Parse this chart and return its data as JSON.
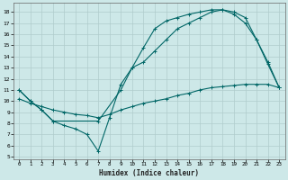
{
  "xlabel": "Humidex (Indice chaleur)",
  "bg_color": "#cde8e8",
  "grid_color": "#b0cccc",
  "line_color": "#006666",
  "xlim": [
    -0.5,
    23.5
  ],
  "ylim": [
    4.8,
    18.8
  ],
  "xticks": [
    0,
    1,
    2,
    3,
    4,
    5,
    6,
    7,
    8,
    9,
    10,
    11,
    12,
    13,
    14,
    15,
    16,
    17,
    18,
    19,
    20,
    21,
    22,
    23
  ],
  "yticks": [
    5,
    6,
    7,
    8,
    9,
    10,
    11,
    12,
    13,
    14,
    15,
    16,
    17,
    18
  ],
  "line1_x": [
    0,
    1,
    2,
    3,
    7,
    9,
    10,
    11,
    12,
    13,
    14,
    15,
    16,
    17,
    18,
    19,
    20,
    21,
    22,
    23
  ],
  "line1_y": [
    11.0,
    10.0,
    9.2,
    8.2,
    8.2,
    11.0,
    13.0,
    13.5,
    14.5,
    15.5,
    16.5,
    17.0,
    17.5,
    18.0,
    18.2,
    18.0,
    17.5,
    15.5,
    13.5,
    11.2
  ],
  "line2_x": [
    0,
    1,
    2,
    3,
    4,
    5,
    6,
    7,
    8,
    9,
    10,
    11,
    12,
    13,
    14,
    15,
    16,
    17,
    18,
    19,
    20,
    21,
    22,
    23
  ],
  "line2_y": [
    11.0,
    10.0,
    9.2,
    8.2,
    7.8,
    7.5,
    7.0,
    5.5,
    8.5,
    11.5,
    13.0,
    14.8,
    16.5,
    17.2,
    17.5,
    17.8,
    18.0,
    18.2,
    18.2,
    17.8,
    17.0,
    15.5,
    13.3,
    11.2
  ],
  "line3_x": [
    0,
    1,
    2,
    3,
    4,
    5,
    6,
    7,
    8,
    9,
    10,
    11,
    12,
    13,
    14,
    15,
    16,
    17,
    18,
    19,
    20,
    21,
    22,
    23
  ],
  "line3_y": [
    10.2,
    9.8,
    9.5,
    9.2,
    9.0,
    8.8,
    8.7,
    8.5,
    8.8,
    9.2,
    9.5,
    9.8,
    10.0,
    10.2,
    10.5,
    10.7,
    11.0,
    11.2,
    11.3,
    11.4,
    11.5,
    11.5,
    11.5,
    11.2
  ]
}
